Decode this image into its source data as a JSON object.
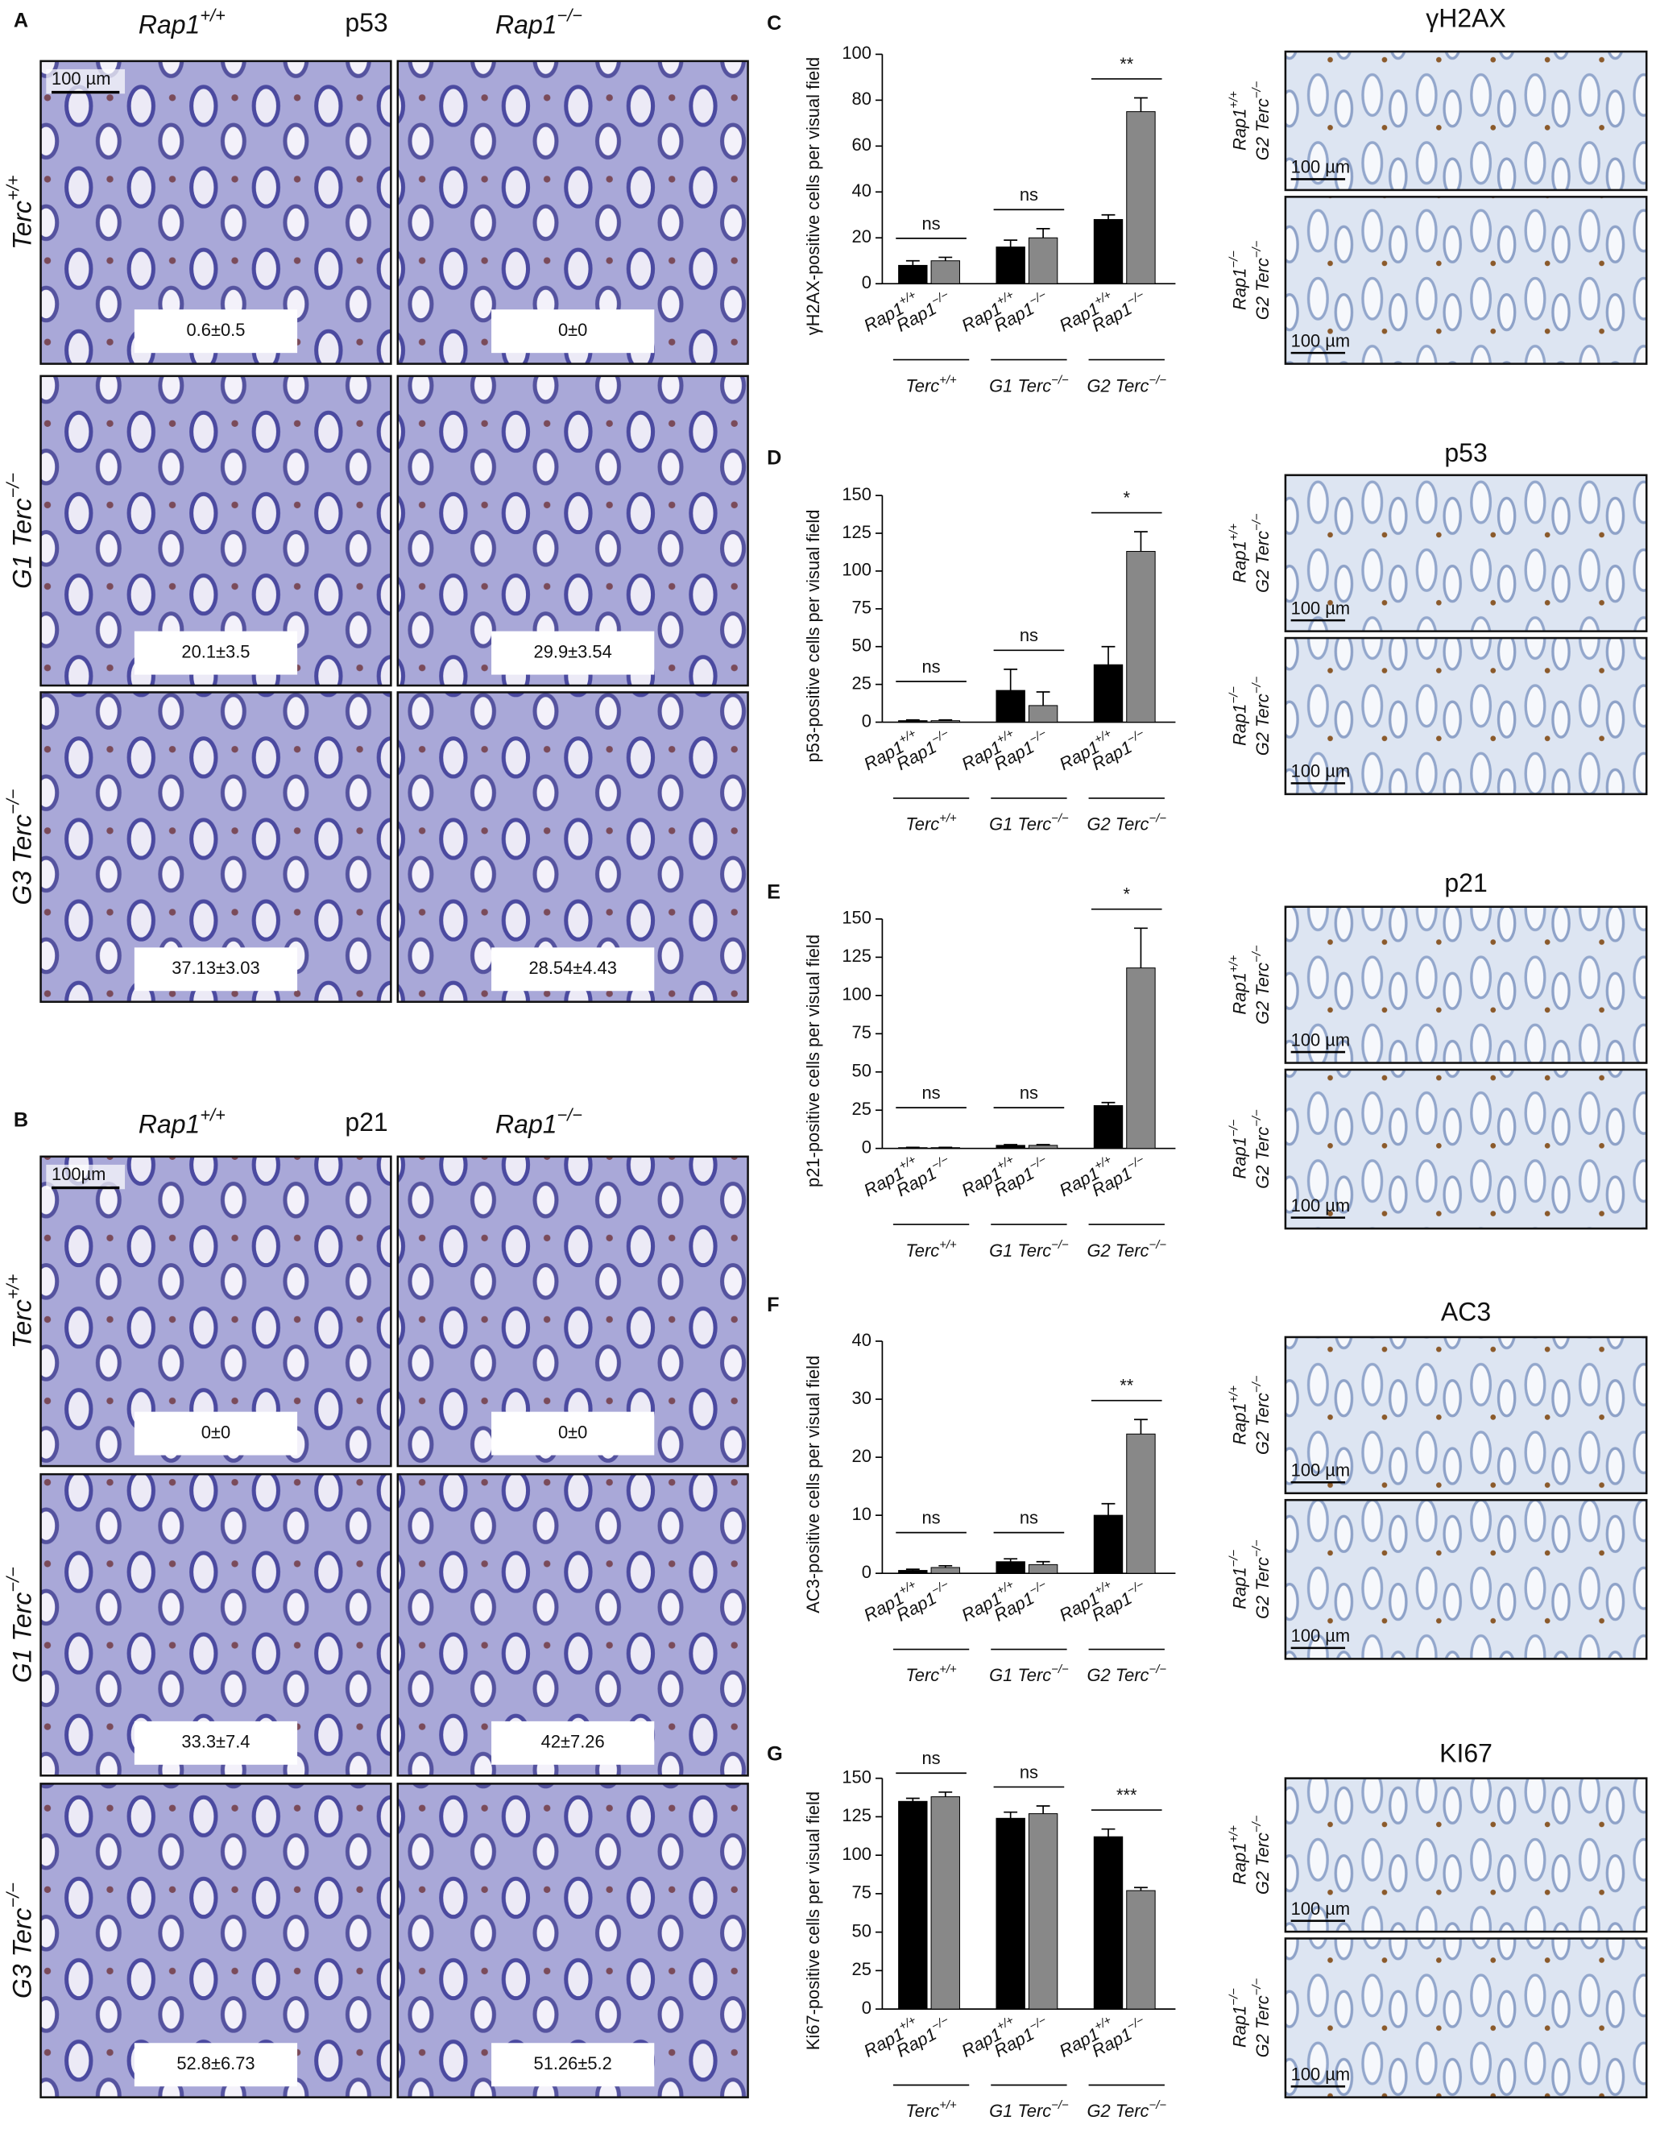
{
  "panel_a": {
    "label": "A",
    "stain": "p53",
    "scale": "100 µm",
    "columns": [
      {
        "text": "Rap1",
        "sup": "+/+"
      },
      {
        "text": "Rap1",
        "sup": "−/−"
      }
    ],
    "rows": [
      {
        "text": "Terc",
        "sup": "+/+"
      },
      {
        "text": "G1 Terc",
        "sup": "−/−"
      },
      {
        "text": "G3 Terc",
        "sup": "−/−"
      }
    ],
    "values": [
      [
        "0.6±0.5",
        "0±0"
      ],
      [
        "20.1±3.5",
        "29.9±3.54"
      ],
      [
        "37.13±3.03",
        "28.54±4.43"
      ]
    ]
  },
  "panel_b": {
    "label": "B",
    "stain": "p21",
    "scale": "100µm",
    "columns": [
      {
        "text": "Rap1",
        "sup": "+/+"
      },
      {
        "text": "Rap1",
        "sup": "−/−"
      }
    ],
    "rows": [
      {
        "text": "Terc",
        "sup": "+/+"
      },
      {
        "text": "G1 Terc",
        "sup": "−/−"
      },
      {
        "text": "G3 Terc",
        "sup": "−/−"
      }
    ],
    "values": [
      [
        "0±0",
        "0±0"
      ],
      [
        "33.3±7.4",
        "42±7.26"
      ],
      [
        "52.8±6.73",
        "51.26±5.2"
      ]
    ]
  },
  "micrograph_rows": [
    {
      "genotype": {
        "text": "Rap1",
        "sup": "+/+"
      },
      "background": {
        "text": "G2 Terc",
        "sup": "−/−"
      }
    },
    {
      "genotype": {
        "text": "Rap1",
        "sup": "−/−"
      },
      "background": {
        "text": "G2 Terc",
        "sup": "−/−"
      }
    }
  ],
  "micrograph_scale": "100 µm",
  "micrographs": [
    "γH2AX",
    "p53",
    "p21",
    "AC3",
    "KI67"
  ],
  "chart_data": [
    {
      "type": "bar",
      "label": "C",
      "ylabel": "γH2AX-positive cells per visual field",
      "categories": [
        {
          "text": "Terc",
          "sup": "+/+"
        },
        {
          "text": "G1 Terc",
          "sup": "−/−"
        },
        {
          "text": "G2 Terc",
          "sup": "−/−"
        }
      ],
      "series": [
        {
          "name": {
            "text": "Rap1",
            "sup": "+/+"
          },
          "color": "#000000",
          "values": [
            8,
            16,
            28
          ],
          "errors": [
            2,
            3,
            2
          ]
        },
        {
          "name": {
            "text": "Rap1",
            "sup": "−/−"
          },
          "color": "#888888",
          "values": [
            10,
            20,
            75
          ],
          "errors": [
            1.5,
            4,
            6
          ]
        }
      ],
      "significance": [
        "ns",
        "ns",
        "**"
      ],
      "ylim": [
        0,
        100
      ],
      "yticks": [
        0,
        20,
        40,
        60,
        80,
        100
      ]
    },
    {
      "type": "bar",
      "label": "D",
      "ylabel": "p53-positive cells per visual field",
      "categories": [
        {
          "text": "Terc",
          "sup": "+/+"
        },
        {
          "text": "G1 Terc",
          "sup": "−/−"
        },
        {
          "text": "G2 Terc",
          "sup": "−/−"
        }
      ],
      "series": [
        {
          "name": {
            "text": "Rap1",
            "sup": "+/+"
          },
          "color": "#000000",
          "values": [
            1,
            21,
            38
          ],
          "errors": [
            0.5,
            14,
            12
          ]
        },
        {
          "name": {
            "text": "Rap1",
            "sup": "−/−"
          },
          "color": "#888888",
          "values": [
            1,
            11,
            113
          ],
          "errors": [
            0.5,
            9,
            13
          ]
        }
      ],
      "significance": [
        "ns",
        "ns",
        "*"
      ],
      "ylim": [
        0,
        150
      ],
      "yticks": [
        0,
        25,
        50,
        75,
        100,
        125,
        150
      ]
    },
    {
      "type": "bar",
      "label": "E",
      "ylabel": "p21-positive cells per visual field",
      "categories": [
        {
          "text": "Terc",
          "sup": "+/+"
        },
        {
          "text": "G1 Terc",
          "sup": "−/−"
        },
        {
          "text": "G2 Terc",
          "sup": "−/−"
        }
      ],
      "series": [
        {
          "name": {
            "text": "Rap1",
            "sup": "+/+"
          },
          "color": "#000000",
          "values": [
            0.5,
            2,
            28
          ],
          "errors": [
            0.2,
            0.5,
            2
          ]
        },
        {
          "name": {
            "text": "Rap1",
            "sup": "−/−"
          },
          "color": "#888888",
          "values": [
            0.5,
            2,
            118
          ],
          "errors": [
            0.2,
            0.5,
            26
          ]
        }
      ],
      "significance": [
        "ns",
        "ns",
        "*"
      ],
      "ylim": [
        0,
        150
      ],
      "yticks": [
        0,
        25,
        50,
        75,
        100,
        125,
        150
      ]
    },
    {
      "type": "bar",
      "label": "F",
      "ylabel": "AC3-positive cells per visual field",
      "categories": [
        {
          "text": "Terc",
          "sup": "+/+"
        },
        {
          "text": "G1 Terc",
          "sup": "−/−"
        },
        {
          "text": "G2 Terc",
          "sup": "−/−"
        }
      ],
      "series": [
        {
          "name": {
            "text": "Rap1",
            "sup": "+/+"
          },
          "color": "#000000",
          "values": [
            0.5,
            2,
            10
          ],
          "errors": [
            0.2,
            0.5,
            2
          ]
        },
        {
          "name": {
            "text": "Rap1",
            "sup": "−/−"
          },
          "color": "#888888",
          "values": [
            1,
            1.5,
            24
          ],
          "errors": [
            0.3,
            0.5,
            2.5
          ]
        }
      ],
      "significance": [
        "ns",
        "ns",
        "**"
      ],
      "ylim": [
        0,
        40
      ],
      "yticks": [
        0,
        10,
        20,
        30,
        40
      ]
    },
    {
      "type": "bar",
      "label": "G",
      "ylabel": "Ki67-positive cells per visual field",
      "categories": [
        {
          "text": "Terc",
          "sup": "+/+"
        },
        {
          "text": "G1 Terc",
          "sup": "−/−"
        },
        {
          "text": "G2 Terc",
          "sup": "−/−"
        }
      ],
      "series": [
        {
          "name": {
            "text": "Rap1",
            "sup": "+/+"
          },
          "color": "#000000",
          "values": [
            135,
            124,
            112
          ],
          "errors": [
            2,
            4,
            5
          ]
        },
        {
          "name": {
            "text": "Rap1",
            "sup": "−/−"
          },
          "color": "#888888",
          "values": [
            138,
            127,
            77
          ],
          "errors": [
            3,
            5,
            2
          ]
        }
      ],
      "significance": [
        "ns",
        "ns",
        "***"
      ],
      "ylim": [
        0,
        150
      ],
      "yticks": [
        0,
        25,
        50,
        75,
        100,
        125,
        150
      ]
    }
  ]
}
